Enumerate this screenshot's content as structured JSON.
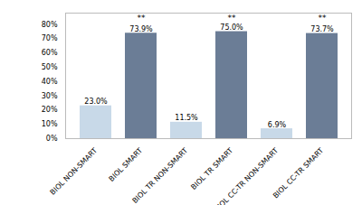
{
  "chart_data": {
    "type": "bar",
    "categories": [
      "BIOL NON-SMART",
      "BIOL SMART",
      "BIOL TR NON-SMART",
      "BIOL TR SMART",
      "BIOL CC-TR NON-SMART",
      "BIOL CC-TR SMART"
    ],
    "values": [
      23.0,
      73.9,
      11.5,
      75.0,
      6.9,
      73.7
    ],
    "value_labels": [
      "23.0%",
      "73.9%",
      "11.5%",
      "75.0%",
      "6.9%",
      "73.7%"
    ],
    "colors": [
      "#c8d9e8",
      "#6b7d96",
      "#c8d9e8",
      "#6b7d96",
      "#c8d9e8",
      "#6b7d96"
    ],
    "data_labels": true,
    "ylim": [
      0,
      88
    ],
    "yticks": [
      {
        "value": 0,
        "label": "0%"
      },
      {
        "value": 10,
        "label": "10%"
      },
      {
        "value": 20,
        "label": "20%"
      },
      {
        "value": 30,
        "label": "30%"
      },
      {
        "value": 40,
        "label": "40%"
      },
      {
        "value": 50,
        "label": "50%"
      },
      {
        "value": 60,
        "label": "60%"
      },
      {
        "value": 70,
        "label": "70%"
      },
      {
        "value": 80,
        "label": "80%"
      }
    ],
    "annotations": [
      {
        "text": "**",
        "x": "BIOL SMART",
        "y": 82.5
      },
      {
        "text": "**",
        "x": "BIOL TR SMART",
        "y": 82.5
      },
      {
        "text": "**",
        "x": "BIOL CC-TR SMART",
        "y": 82.5
      }
    ],
    "grid": false
  }
}
